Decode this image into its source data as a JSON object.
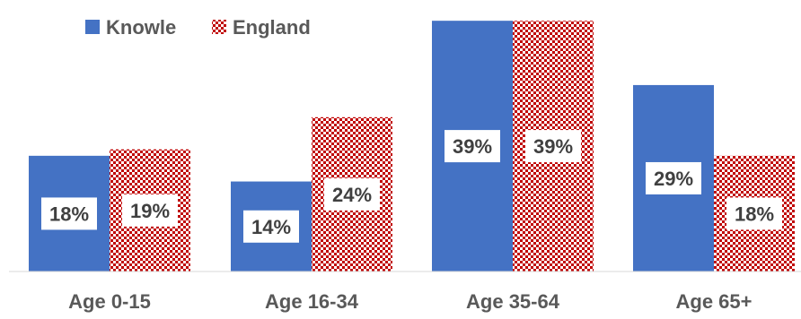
{
  "chart_data": {
    "type": "bar",
    "categories": [
      "Age 0-15",
      "Age 16-34",
      "Age 35-64",
      "Age 65+"
    ],
    "series": [
      {
        "name": "Knowle",
        "values": [
          18,
          14,
          39,
          29
        ],
        "color": "#4472C4",
        "pattern": "solid"
      },
      {
        "name": "England",
        "values": [
          19,
          24,
          39,
          18
        ],
        "color": "#C00000",
        "pattern": "checker"
      }
    ],
    "data_labels": {
      "Knowle": [
        "18%",
        "14%",
        "39%",
        "29%"
      ],
      "England": [
        "19%",
        "24%",
        "39%",
        "18%"
      ]
    },
    "ylim": [
      0,
      40
    ],
    "grid": false,
    "legend_position": "top-left",
    "title": "",
    "xlabel": "",
    "ylabel": ""
  }
}
